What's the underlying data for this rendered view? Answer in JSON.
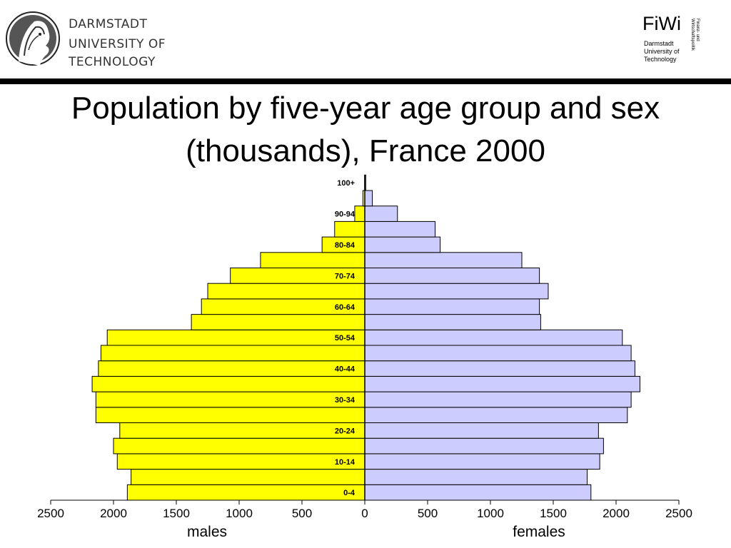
{
  "header": {
    "university_lines": [
      "DARMSTADT",
      "UNIVERSITY OF",
      "TECHNOLOGY"
    ],
    "fiwi_logo": "FiWi",
    "fiwi_subtitle": "Darmstadt\nUniversity of\nTechnology",
    "fiwi_vertical_text": "Finanz- und\nWirtschaftspolitik"
  },
  "title": {
    "line1": "Population by five-year age group and sex",
    "line2": "(thousands), France 2000"
  },
  "chart_data": {
    "type": "bar",
    "orientation": "horizontal-pyramid",
    "title": "Population by five-year age group and sex (thousands), France 2000",
    "categories": [
      "0-4",
      "5-9",
      "10-14",
      "15-19",
      "20-24",
      "25-29",
      "30-34",
      "35-39",
      "40-44",
      "45-49",
      "50-54",
      "55-59",
      "60-64",
      "65-69",
      "70-74",
      "75-79",
      "80-84",
      "85-89",
      "90-94",
      "95-99",
      "100+"
    ],
    "category_labels_shown": [
      "0-4",
      "",
      "10-14",
      "",
      "20-24",
      "",
      "30-34",
      "",
      "40-44",
      "",
      "50-54",
      "",
      "60-64",
      "",
      "70-74",
      "",
      "80-84",
      "",
      "90-94",
      "",
      "100+"
    ],
    "series": [
      {
        "name": "males",
        "color": "#ffff00",
        "values": [
          1890,
          1860,
          1970,
          2000,
          1950,
          2140,
          2140,
          2170,
          2120,
          2100,
          2050,
          1380,
          1300,
          1250,
          1070,
          830,
          340,
          240,
          80,
          15,
          2
        ]
      },
      {
        "name": "females",
        "color": "#ccccff",
        "values": [
          1800,
          1770,
          1870,
          1900,
          1860,
          2090,
          2120,
          2190,
          2150,
          2120,
          2050,
          1400,
          1390,
          1460,
          1390,
          1250,
          600,
          560,
          260,
          60,
          8
        ]
      }
    ],
    "xlabel_left": "males",
    "xlabel_right": "females",
    "x_ticks": [
      2500,
      2000,
      1500,
      1000,
      500,
      0,
      500,
      1000,
      1500,
      2000,
      2500
    ],
    "xlim": [
      -2500,
      2500
    ],
    "grid": false,
    "legend": "none"
  }
}
